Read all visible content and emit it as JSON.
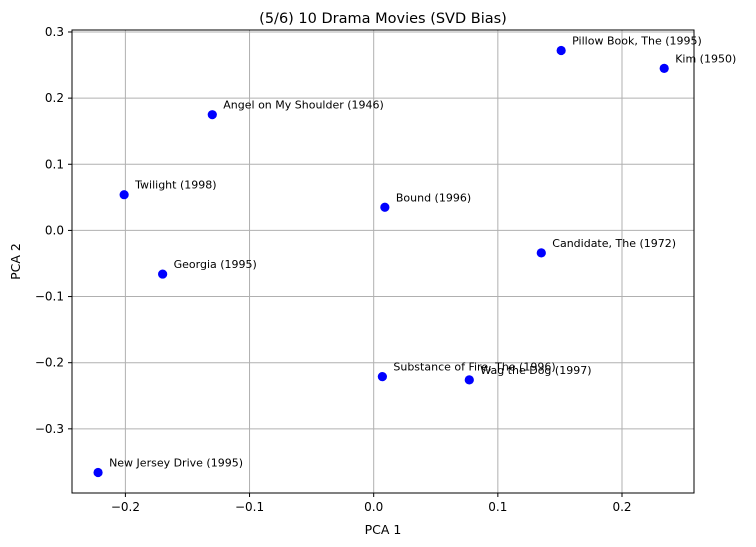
{
  "chart_data": {
    "type": "scatter",
    "title": "(5/6) 10 Drama Movies (SVD Bias)",
    "xlabel": "PCA 1",
    "ylabel": "PCA 2",
    "xlim": [
      -0.243,
      0.258
    ],
    "ylim": [
      -0.397,
      0.303
    ],
    "xticks": [
      -0.2,
      -0.1,
      0.0,
      0.1,
      0.2
    ],
    "xtick_labels": [
      "−0.2",
      "−0.1",
      "0.0",
      "0.1",
      "0.2"
    ],
    "yticks": [
      -0.3,
      -0.2,
      -0.1,
      0.0,
      0.1,
      0.2,
      0.3
    ],
    "ytick_labels": [
      "−0.3",
      "−0.2",
      "−0.1",
      "0.0",
      "0.1",
      "0.2",
      "0.3"
    ],
    "grid": true,
    "marker_color": "#0000ff",
    "points": [
      {
        "label": "Pillow Book, The (1995)",
        "x": 0.151,
        "y": 0.272
      },
      {
        "label": "Kim (1950)",
        "x": 0.234,
        "y": 0.245
      },
      {
        "label": "Angel on My Shoulder (1946)",
        "x": -0.13,
        "y": 0.175
      },
      {
        "label": "Twilight (1998)",
        "x": -0.201,
        "y": 0.054
      },
      {
        "label": "Bound (1996)",
        "x": 0.009,
        "y": 0.035
      },
      {
        "label": "Candidate, The (1972)",
        "x": 0.135,
        "y": -0.034
      },
      {
        "label": "Georgia (1995)",
        "x": -0.17,
        "y": -0.066
      },
      {
        "label": "Substance of Fire, The (1996)",
        "x": 0.007,
        "y": -0.221
      },
      {
        "label": "Wag the Dog (1997)",
        "x": 0.077,
        "y": -0.226
      },
      {
        "label": "New Jersey Drive (1995)",
        "x": -0.222,
        "y": -0.366
      }
    ]
  }
}
